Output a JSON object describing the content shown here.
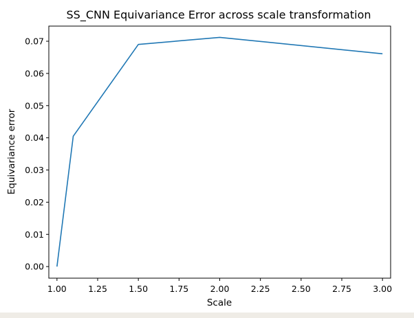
{
  "chart_data": {
    "type": "line",
    "title": "SS_CNN Equivariance Error across scale transformation",
    "xlabel": "Scale",
    "ylabel": "Equivariance error",
    "xlim": [
      0.95,
      3.05
    ],
    "ylim": [
      -0.0036,
      0.0747
    ],
    "xticks": [
      "1.00",
      "1.25",
      "1.50",
      "1.75",
      "2.00",
      "2.25",
      "2.50",
      "2.75",
      "3.00"
    ],
    "yticks": [
      "0.00",
      "0.01",
      "0.02",
      "0.03",
      "0.04",
      "0.05",
      "0.06",
      "0.07"
    ],
    "grid": false,
    "series": [
      {
        "color": "#1f77b4",
        "x": [
          1.0,
          1.1,
          1.5,
          2.0,
          3.0
        ],
        "y": [
          0.0,
          0.0405,
          0.069,
          0.0712,
          0.0661
        ]
      }
    ]
  }
}
